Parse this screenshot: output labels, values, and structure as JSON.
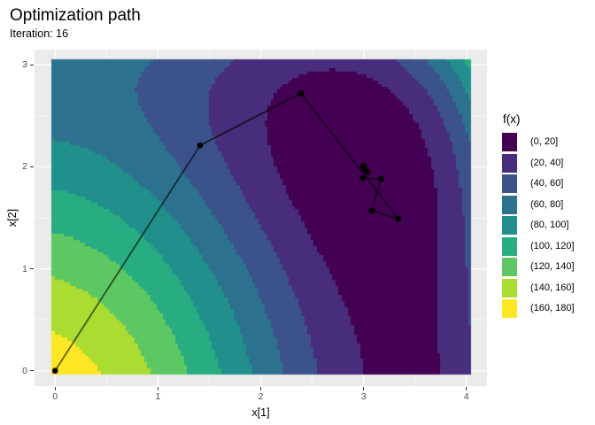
{
  "title": "Optimization path",
  "subtitle": "Iteration: 16",
  "axes": {
    "x": {
      "label": "x[1]",
      "ticks": [
        "0",
        "1",
        "2",
        "3",
        "4"
      ],
      "tick_values": [
        0,
        1,
        2,
        3,
        4
      ]
    },
    "y": {
      "label": "x[2]",
      "ticks": [
        "0",
        "1",
        "2",
        "3"
      ],
      "tick_values": [
        0,
        1,
        2,
        3
      ]
    }
  },
  "legend": {
    "title": "f(x)",
    "entries": [
      {
        "label": "(0, 20]",
        "color": "#440154"
      },
      {
        "label": "(20, 40]",
        "color": "#472D7B"
      },
      {
        "label": "(40, 60]",
        "color": "#3B528B"
      },
      {
        "label": "(60, 80]",
        "color": "#2C728E"
      },
      {
        "label": "(80, 100]",
        "color": "#21908C"
      },
      {
        "label": "(100, 120]",
        "color": "#27AD81"
      },
      {
        "label": "(120, 140]",
        "color": "#5DC863"
      },
      {
        "label": "(140, 160]",
        "color": "#AADC32"
      },
      {
        "label": "(160, 180]",
        "color": "#FDE725"
      }
    ]
  },
  "chart_data": {
    "type": "filled-contour",
    "title": "Optimization path",
    "subtitle": "Iteration: 16",
    "xlabel": "x[1]",
    "ylabel": "x[2]",
    "surface_function": "Himmelblau: f(x1,x2) = (x1^2 + x2 - 11)^2 + (x1 + x2^2 - 7)^2",
    "x_domain": [
      0,
      4
    ],
    "y_domain": [
      0,
      3
    ],
    "x_panel_range": [
      -0.2,
      4.2
    ],
    "y_panel_range": [
      -0.15,
      3.15
    ],
    "bin_width": 20,
    "levels": [
      0,
      20,
      40,
      60,
      80,
      100,
      120,
      140,
      160,
      180
    ],
    "band_colors": [
      "#440154",
      "#472D7B",
      "#3B528B",
      "#2C728E",
      "#21908C",
      "#27AD81",
      "#5DC863",
      "#AADC32",
      "#FDE725"
    ],
    "panel_bg": "#EBEBEB",
    "grid_color": "#FFFFFF",
    "grid_major_x": [
      0,
      1,
      2,
      3,
      4
    ],
    "grid_minor_x": [
      0.5,
      1.5,
      2.5,
      3.5
    ],
    "grid_major_y": [
      0,
      1,
      2,
      3
    ],
    "grid_minor_y": [
      0.5,
      1.5,
      2.5
    ],
    "raster_step": 0.03,
    "raster_overhang": 0.035,
    "path": {
      "color": "#000000",
      "point_radius": 3.2,
      "line_width": 1.1,
      "points": [
        [
          0.0,
          0.0
        ],
        [
          1.41,
          2.21
        ],
        [
          2.39,
          2.72
        ],
        [
          3.34,
          1.49
        ],
        [
          3.08,
          1.57
        ],
        [
          3.17,
          1.88
        ],
        [
          2.99,
          1.89
        ],
        [
          3.04,
          1.95
        ],
        [
          3.01,
          1.98
        ],
        [
          3.0,
          2.01
        ],
        [
          2.998,
          1.998
        ],
        [
          3.002,
          2.003
        ],
        [
          2.999,
          1.999
        ],
        [
          3.001,
          2.001
        ],
        [
          3.0,
          2.0
        ],
        [
          3.0,
          2.0
        ],
        [
          3.0,
          2.0
        ]
      ]
    }
  }
}
